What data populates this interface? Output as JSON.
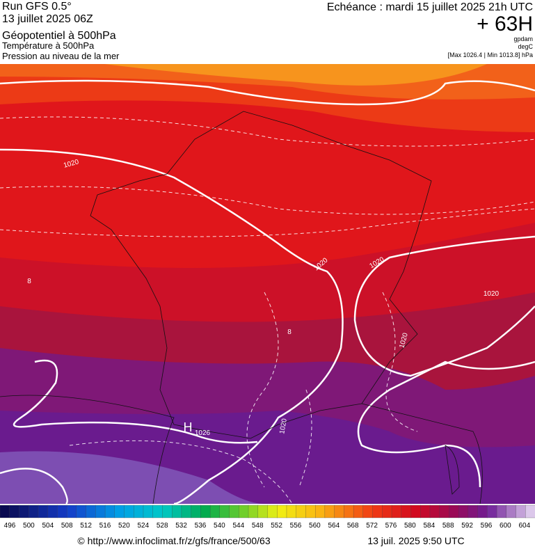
{
  "header": {
    "run": "Run GFS 0.5°",
    "date": "13 juillet 2025 06Z",
    "title": "Géopotentiel à 500hPa",
    "subtitle1": "Température à 500hPa",
    "subtitle2": "Pression au niveau de la mer",
    "echeance": "Echéance : mardi 15 juillet 2025 21h UTC",
    "lead": "+ 63H",
    "unit1": "gpdam",
    "unit2": "degC",
    "range": "[Max 1026.4 | Min 1013.8] hPa"
  },
  "map": {
    "labels": [
      "1020",
      "1020",
      "1020",
      "1020",
      "1020",
      "1020",
      "H",
      "1026",
      "8",
      "8"
    ]
  },
  "colorbar": {
    "labels": [
      496,
      500,
      504,
      508,
      512,
      516,
      520,
      524,
      528,
      532,
      536,
      540,
      544,
      548,
      552,
      556,
      560,
      564,
      568,
      572,
      576,
      580,
      584,
      588,
      592,
      596,
      600,
      604
    ]
  },
  "footer": {
    "url": "© http://www.infoclimat.fr/z/gfs/france/500/63",
    "timestamp": "13 juil. 2025  9:50 UTC"
  }
}
